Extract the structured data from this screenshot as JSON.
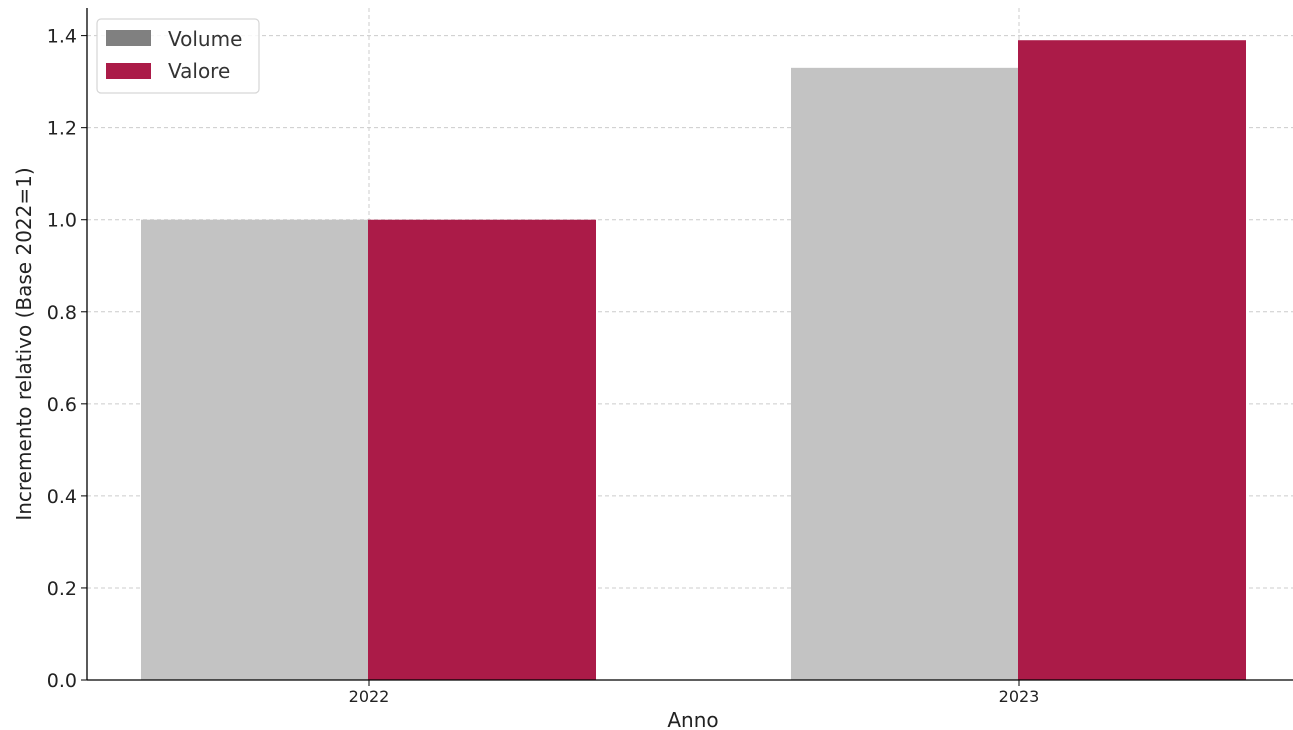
{
  "chart_data": {
    "type": "bar",
    "categories": [
      "2022",
      "2023"
    ],
    "series": [
      {
        "name": "Volume",
        "values": [
          1.0,
          1.33
        ]
      },
      {
        "name": "Valore",
        "values": [
          1.0,
          1.39
        ]
      }
    ],
    "xlabel": "Anno",
    "ylabel": "Incremento relativo (Base 2022=1)",
    "ylim": [
      0,
      1.46
    ],
    "yticks": [
      0.0,
      0.2,
      0.4,
      0.6,
      0.8,
      1.0,
      1.2,
      1.4
    ],
    "ytick_labels": [
      "0.0",
      "0.2",
      "0.4",
      "0.6",
      "0.8",
      "1.0",
      "1.2",
      "1.4"
    ],
    "grid": true,
    "legend_position": "top-left",
    "colors": {
      "volume_bar": "#c3c3c3",
      "volume_legend": "#808080",
      "valore": "#ab1b48",
      "grid": "#cccccc",
      "axis": "#000000"
    }
  }
}
